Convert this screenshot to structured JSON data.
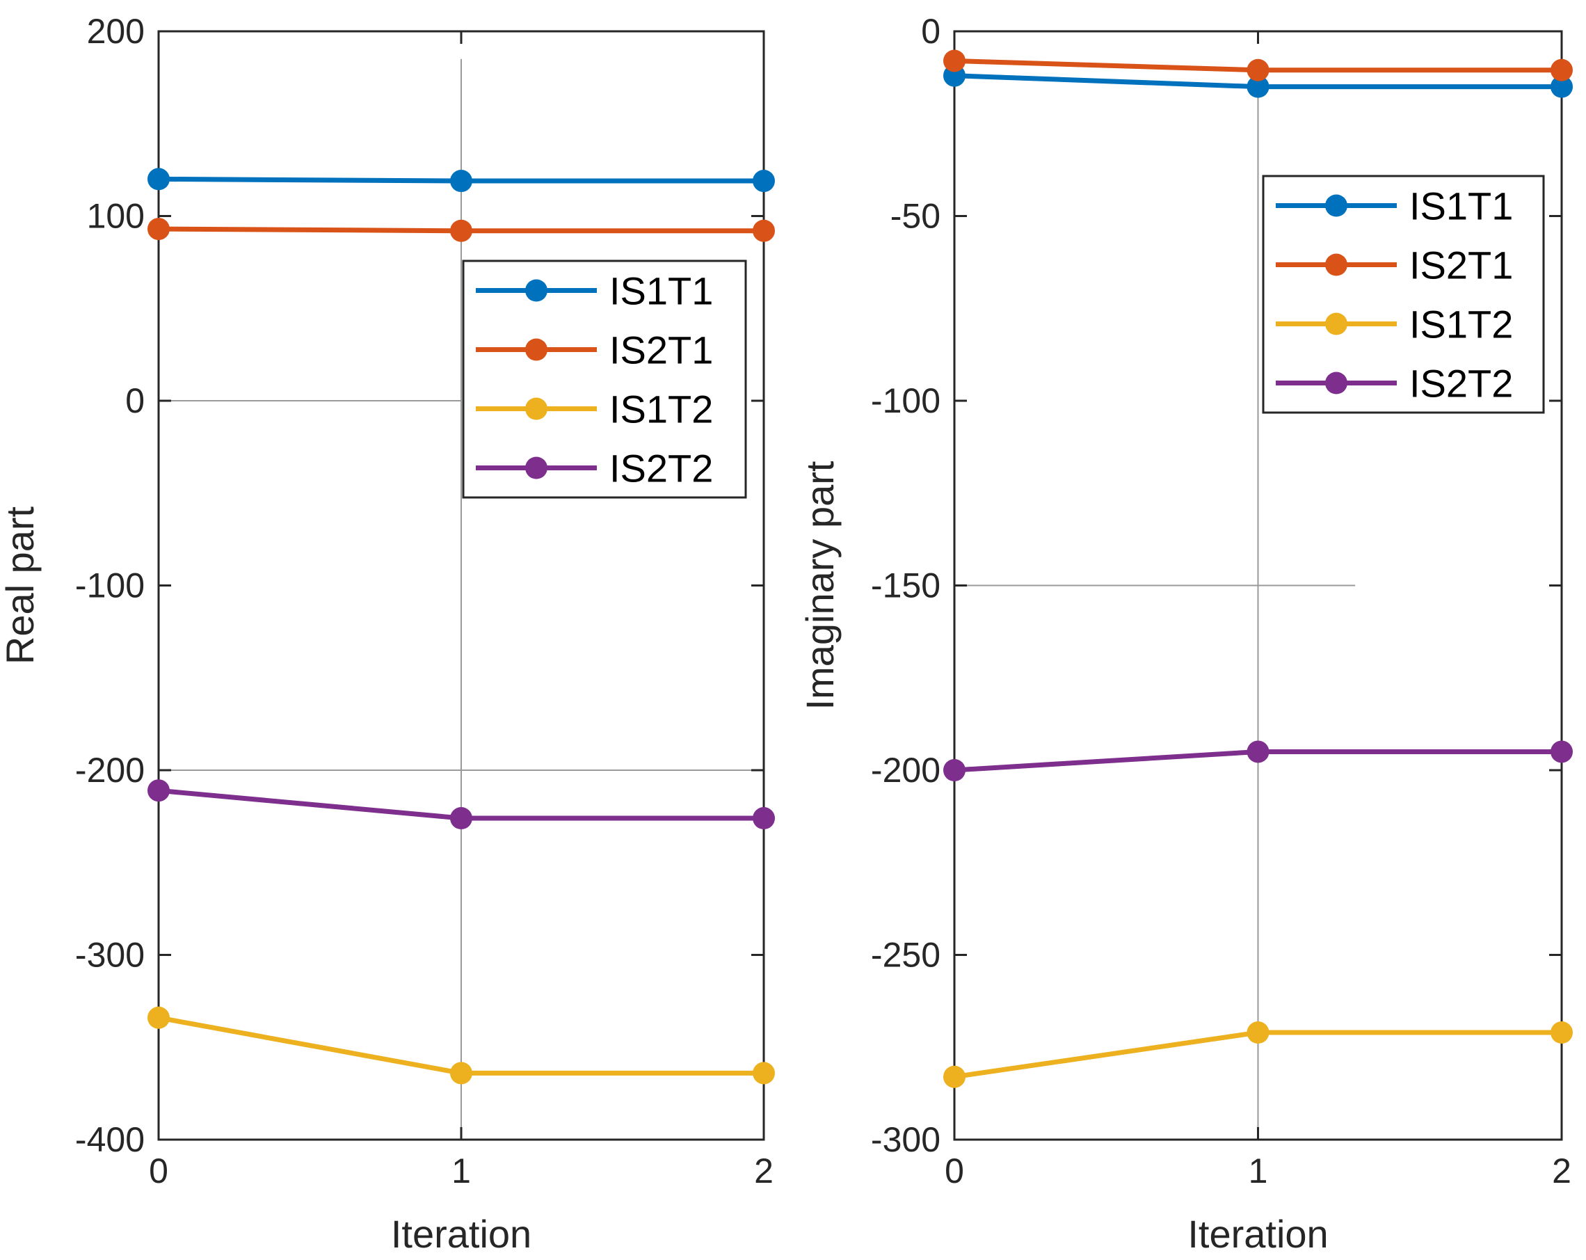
{
  "chart_data": [
    {
      "type": "line",
      "xlabel": "Iteration",
      "ylabel": "Real part",
      "x": [
        0,
        1,
        2
      ],
      "xlim": [
        0,
        2
      ],
      "ylim": [
        -400,
        200
      ],
      "xticks": [
        "0",
        "1",
        "2"
      ],
      "yticks": [
        "200",
        "100",
        "0",
        "-100",
        "-200",
        "-300",
        "-400"
      ],
      "grid": "partial",
      "legend_position": "right",
      "series": [
        {
          "name": "IS1T1",
          "color": "#0072BD",
          "values": [
            120,
            119,
            119
          ]
        },
        {
          "name": "IS2T1",
          "color": "#D95319",
          "values": [
            93,
            92,
            92
          ]
        },
        {
          "name": "IS1T2",
          "color": "#EDB120",
          "values": [
            -334,
            -364,
            -364
          ]
        },
        {
          "name": "IS2T2",
          "color": "#7E2F8E",
          "values": [
            -211,
            -226,
            -226
          ]
        }
      ]
    },
    {
      "type": "line",
      "xlabel": "Iteration",
      "ylabel": "Imaginary part",
      "x": [
        0,
        1,
        2
      ],
      "xlim": [
        0,
        2
      ],
      "ylim": [
        -300,
        0
      ],
      "xticks": [
        "0",
        "1",
        "2"
      ],
      "yticks": [
        "0",
        "-50",
        "-100",
        "-150",
        "-200",
        "-250",
        "-300"
      ],
      "grid": "partial",
      "legend_position": "top-right",
      "series": [
        {
          "name": "IS1T1",
          "color": "#0072BD",
          "values": [
            -12,
            -15,
            -15
          ]
        },
        {
          "name": "IS2T1",
          "color": "#D95319",
          "values": [
            -8,
            -10.5,
            -10.5
          ]
        },
        {
          "name": "IS1T2",
          "color": "#EDB120",
          "values": [
            -283,
            -271,
            -271
          ]
        },
        {
          "name": "IS2T2",
          "color": "#7E2F8E",
          "values": [
            -200,
            -195,
            -195
          ]
        }
      ]
    }
  ]
}
